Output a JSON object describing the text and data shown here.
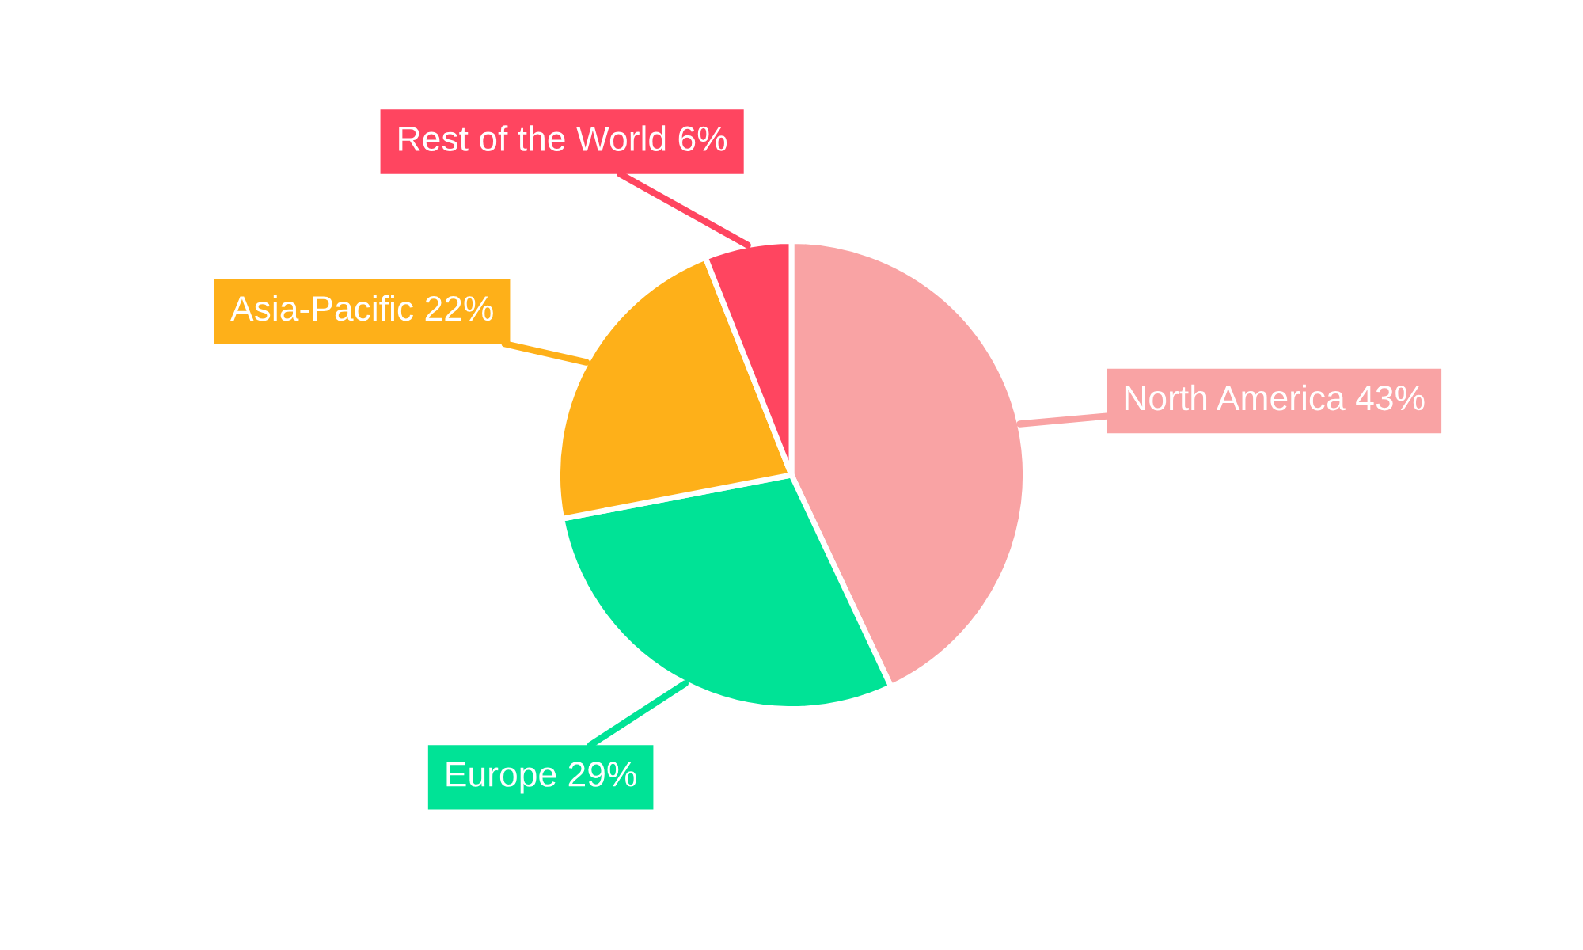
{
  "chart_data": {
    "type": "pie",
    "categories": [
      "North America",
      "Europe",
      "Asia-Pacific",
      "Rest of the World"
    ],
    "values": [
      43,
      29,
      22,
      6
    ],
    "value_labels": [
      "43%",
      "29%",
      "22%",
      "6%"
    ],
    "colors": [
      "#f9a3a4",
      "#00e396",
      "#feb019",
      "#ff4560"
    ],
    "legend": false
  }
}
